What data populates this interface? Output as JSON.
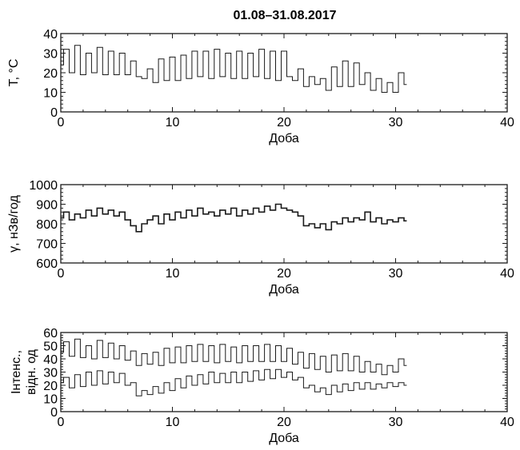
{
  "title": "01.08–31.08.2017",
  "chart_data": [
    {
      "type": "line",
      "xlabel": "Доба",
      "ylabel": "T, °C",
      "xlim": [
        0,
        40
      ],
      "ylim": [
        0,
        40
      ],
      "xticks": [
        0,
        10,
        20,
        30,
        40
      ],
      "yticks": [
        0,
        10,
        20,
        30,
        40
      ],
      "series": [
        {
          "x": [
            0,
            0.5,
            1,
            1.5,
            2,
            2.5,
            3,
            3.5,
            4,
            4.5,
            5,
            5.5,
            6,
            6.5,
            7,
            7.5,
            8,
            8.5,
            9,
            9.5,
            10,
            10.5,
            11,
            11.5,
            12,
            12.5,
            13,
            13.5,
            14,
            14.5,
            15,
            15.5,
            16,
            16.5,
            17,
            17.5,
            18,
            18.5,
            19,
            19.5,
            20,
            20.5,
            21,
            21.5,
            22,
            22.5,
            23,
            23.5,
            24,
            24.5,
            25,
            25.5,
            26,
            26.5,
            27,
            27.5,
            28,
            28.5,
            29,
            29.5,
            30,
            30.5,
            31
          ],
          "y": [
            24,
            32,
            20,
            34,
            19,
            30,
            20,
            33,
            19,
            31,
            19,
            30,
            19,
            26,
            18,
            17,
            22,
            15,
            27,
            16,
            28,
            16,
            29,
            17,
            31,
            18,
            31,
            17,
            32,
            18,
            30,
            17,
            31,
            17,
            30,
            18,
            32,
            17,
            31,
            16,
            31,
            18,
            16,
            22,
            13,
            18,
            14,
            17,
            11,
            23,
            13,
            26,
            13,
            25,
            14,
            20,
            11,
            17,
            10,
            15,
            10,
            20,
            14
          ]
        }
      ]
    },
    {
      "type": "line",
      "xlabel": "Доба",
      "ylabel": "γ, нЗв/год",
      "xlim": [
        0,
        40
      ],
      "ylim": [
        600,
        1000
      ],
      "xticks": [
        0,
        10,
        20,
        30,
        40
      ],
      "yticks": [
        600,
        700,
        800,
        900,
        1000
      ],
      "series": [
        {
          "x": [
            0,
            0.5,
            1,
            1.5,
            2,
            2.5,
            3,
            3.5,
            4,
            4.5,
            5,
            5.5,
            6,
            6.5,
            7,
            7.5,
            8,
            8.5,
            9,
            9.5,
            10,
            10.5,
            11,
            11.5,
            12,
            12.5,
            13,
            13.5,
            14,
            14.5,
            15,
            15.5,
            16,
            16.5,
            17,
            17.5,
            18,
            18.5,
            19,
            19.5,
            20,
            20.5,
            21,
            21.5,
            22,
            22.5,
            23,
            23.5,
            24,
            24.5,
            25,
            25.5,
            26,
            26.5,
            27,
            27.5,
            28,
            28.5,
            29,
            29.5,
            30,
            30.5,
            31
          ],
          "y": [
            830,
            860,
            820,
            850,
            830,
            870,
            840,
            880,
            850,
            870,
            840,
            860,
            820,
            790,
            760,
            800,
            820,
            840,
            800,
            850,
            820,
            860,
            830,
            870,
            840,
            880,
            850,
            860,
            840,
            870,
            850,
            880,
            840,
            870,
            850,
            880,
            860,
            890,
            870,
            900,
            880,
            870,
            860,
            840,
            790,
            800,
            780,
            800,
            770,
            810,
            800,
            830,
            810,
            830,
            820,
            860,
            810,
            830,
            800,
            820,
            810,
            830,
            815
          ]
        }
      ]
    },
    {
      "type": "line",
      "xlabel": "Доба",
      "ylabel": "Інтенс., відн. од",
      "xlim": [
        0,
        40
      ],
      "ylim": [
        0,
        60
      ],
      "xticks": [
        0,
        10,
        20,
        30,
        40
      ],
      "yticks": [
        0,
        10,
        20,
        30,
        40,
        50,
        60
      ],
      "series": [
        {
          "x": [
            0,
            0.5,
            1,
            1.5,
            2,
            2.5,
            3,
            3.5,
            4,
            4.5,
            5,
            5.5,
            6,
            6.5,
            7,
            7.5,
            8,
            8.5,
            9,
            9.5,
            10,
            10.5,
            11,
            11.5,
            12,
            12.5,
            13,
            13.5,
            14,
            14.5,
            15,
            15.5,
            16,
            16.5,
            17,
            17.5,
            18,
            18.5,
            19,
            19.5,
            20,
            20.5,
            21,
            21.5,
            22,
            22.5,
            23,
            23.5,
            24,
            24.5,
            25,
            25.5,
            26,
            26.5,
            27,
            27.5,
            28,
            28.5,
            29,
            29.5,
            30,
            30.5,
            31
          ],
          "y": [
            45,
            53,
            42,
            55,
            41,
            50,
            40,
            54,
            41,
            52,
            40,
            50,
            39,
            46,
            35,
            44,
            36,
            45,
            35,
            48,
            37,
            49,
            37,
            50,
            38,
            51,
            38,
            50,
            37,
            51,
            38,
            49,
            37,
            50,
            38,
            50,
            38,
            51,
            38,
            50,
            38,
            48,
            36,
            45,
            33,
            44,
            32,
            42,
            30,
            43,
            31,
            44,
            31,
            42,
            30,
            38,
            30,
            36,
            28,
            35,
            30,
            40,
            35
          ]
        },
        {
          "x": [
            0,
            0.5,
            1,
            1.5,
            2,
            2.5,
            3,
            3.5,
            4,
            4.5,
            5,
            5.5,
            6,
            6.5,
            7,
            7.5,
            8,
            8.5,
            9,
            9.5,
            10,
            10.5,
            11,
            11.5,
            12,
            12.5,
            13,
            13.5,
            14,
            14.5,
            15,
            15.5,
            16,
            16.5,
            17,
            17.5,
            18,
            18.5,
            19,
            19.5,
            20,
            20.5,
            21,
            21.5,
            22,
            22.5,
            23,
            23.5,
            24,
            24.5,
            25,
            25.5,
            26,
            26.5,
            27,
            27.5,
            28,
            28.5,
            29,
            29.5,
            30,
            30.5,
            31
          ],
          "y": [
            22,
            26,
            18,
            28,
            19,
            30,
            20,
            31,
            21,
            30,
            22,
            29,
            20,
            22,
            12,
            16,
            13,
            19,
            14,
            22,
            16,
            25,
            18,
            27,
            20,
            28,
            21,
            30,
            22,
            29,
            22,
            30,
            22,
            30,
            23,
            31,
            24,
            32,
            25,
            32,
            26,
            30,
            24,
            26,
            18,
            20,
            15,
            18,
            13,
            20,
            15,
            21,
            16,
            22,
            17,
            22,
            17,
            21,
            18,
            22,
            19,
            22,
            20
          ]
        }
      ]
    }
  ]
}
